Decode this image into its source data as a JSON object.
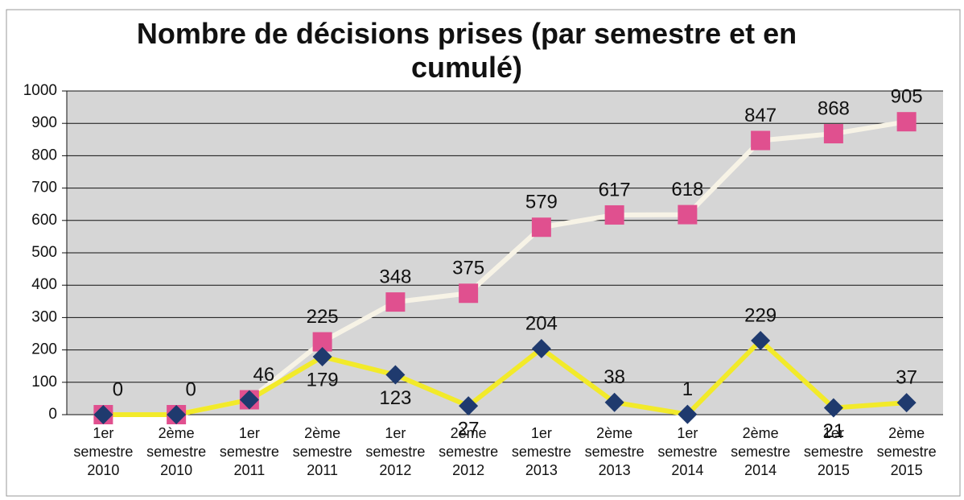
{
  "chart_data": {
    "type": "line",
    "title": "Nombre de décisions prises (par semestre et en cumulé)",
    "categories": [
      "1er semestre 2010",
      "2ème semestre 2010",
      "1er semestre 2011",
      "2ème semestre 2011",
      "1er semestre 2012",
      "2ème semestre 2012",
      "1er semestre 2013",
      "2ème semestre 2013",
      "1er semestre 2014",
      "2ème semestre 2014",
      "1er semestre 2015",
      "2ème semestre 2015"
    ],
    "series": [
      {
        "color": "#1f3a6e",
        "line_color": "#f2ea2a",
        "marker": "diamond",
        "values": [
          0,
          0,
          46,
          179,
          123,
          27,
          204,
          38,
          1,
          229,
          21,
          37
        ]
      },
      {
        "color": "#e0508f",
        "line_color": "#f7f3e6",
        "marker": "square",
        "values": [
          0,
          0,
          46,
          225,
          348,
          375,
          579,
          617,
          618,
          847,
          868,
          905
        ]
      }
    ],
    "ylim": [
      0,
      1000
    ],
    "yticks": [
      0,
      100,
      200,
      300,
      400,
      500,
      600,
      700,
      800,
      900,
      1000
    ],
    "grid": true
  }
}
